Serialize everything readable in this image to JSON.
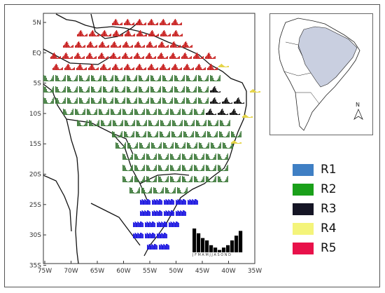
{
  "map": {
    "lat_labels": [
      "5N",
      "EQ",
      "5S",
      "10S",
      "15S",
      "20S",
      "25S",
      "30S",
      "35S"
    ],
    "lon_labels": [
      "75W",
      "70W",
      "65W",
      "60W",
      "55W",
      "50W",
      "45W",
      "40W",
      "35W"
    ]
  },
  "legend": {
    "items": [
      {
        "label": "R1",
        "color": "#3f7fc4"
      },
      {
        "label": "R2",
        "color": "#1aa01a"
      },
      {
        "label": "R3",
        "color": "#151525"
      },
      {
        "label": "R4",
        "color": "#f4f47a"
      },
      {
        "label": "R5",
        "color": "#e8114a"
      }
    ]
  },
  "colors": {
    "region_north": "#c8201f",
    "region_center": "#3e7a3a",
    "region_south": "#1a14e0",
    "region_east": "#111111",
    "region_coast": "#e3d23c",
    "inset_fill": "#c9cfe0"
  },
  "inset": {
    "north_label": "N"
  },
  "example_chart": {
    "month_labels": "J F M A M J J A S O N D",
    "values": [
      10,
      8,
      6,
      5,
      3,
      2,
      1,
      2,
      3,
      5,
      7,
      9
    ]
  }
}
